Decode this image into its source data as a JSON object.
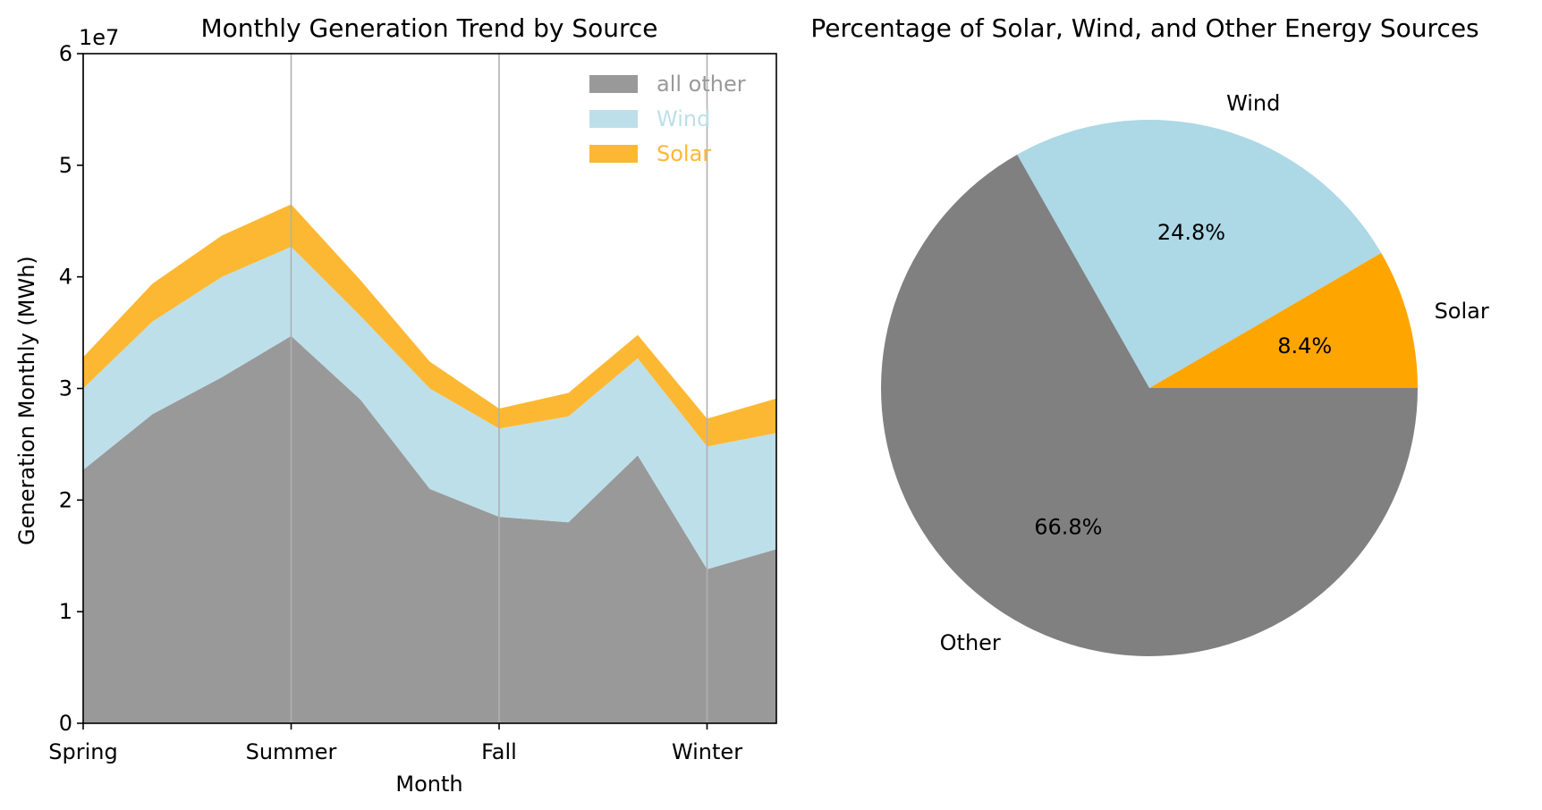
{
  "chart_data": [
    {
      "type": "area",
      "stacked": true,
      "title": "Monthly Generation Trend by Source",
      "xlabel": "Month",
      "ylabel": "Generation Monthly (MWh)",
      "y_scale_label": "1e7",
      "ylim": [
        0,
        60000000
      ],
      "y_ticks": [
        0,
        10000000,
        20000000,
        30000000,
        40000000,
        50000000,
        60000000
      ],
      "y_tick_labels": [
        "0",
        "1",
        "2",
        "3",
        "4",
        "5",
        "6"
      ],
      "xlim": [
        0,
        10
      ],
      "x_ticks": [
        0,
        3,
        6,
        9
      ],
      "x_tick_labels": [
        "Spring",
        "Summer",
        "Fall",
        "Winter"
      ],
      "x": [
        0,
        1,
        2,
        3,
        4,
        5,
        6,
        7,
        8,
        9,
        10
      ],
      "grid": "vertical",
      "legend_position": "top-right",
      "series": [
        {
          "name": "all other",
          "color": "#999999",
          "values": [
            22700000,
            27700000,
            31000000,
            34700000,
            29000000,
            21000000,
            18500000,
            18000000,
            24000000,
            13800000,
            15600000
          ]
        },
        {
          "name": "Wind",
          "color": "#bddfea",
          "values": [
            7300000,
            8300000,
            9000000,
            8000000,
            7500000,
            9000000,
            7900000,
            9500000,
            8700000,
            11000000,
            10400000
          ]
        },
        {
          "name": "Solar",
          "color": "#fdb833",
          "values": [
            2800000,
            3400000,
            3700000,
            3800000,
            3200000,
            2400000,
            1800000,
            2100000,
            2100000,
            2500000,
            3100000
          ]
        }
      ],
      "legend_order": [
        "all other",
        "Wind",
        "Solar"
      ]
    },
    {
      "type": "pie",
      "title": "Percentage of Solar, Wind, and Other Energy Sources",
      "slices": [
        {
          "label": "Solar",
          "value": 8.4,
          "pct_label": "8.4%",
          "color": "#ffa500"
        },
        {
          "label": "Wind",
          "value": 24.8,
          "pct_label": "24.8%",
          "color": "#add8e6"
        },
        {
          "label": "Other",
          "value": 66.8,
          "pct_label": "66.8%",
          "color": "#808080"
        }
      ]
    }
  ]
}
